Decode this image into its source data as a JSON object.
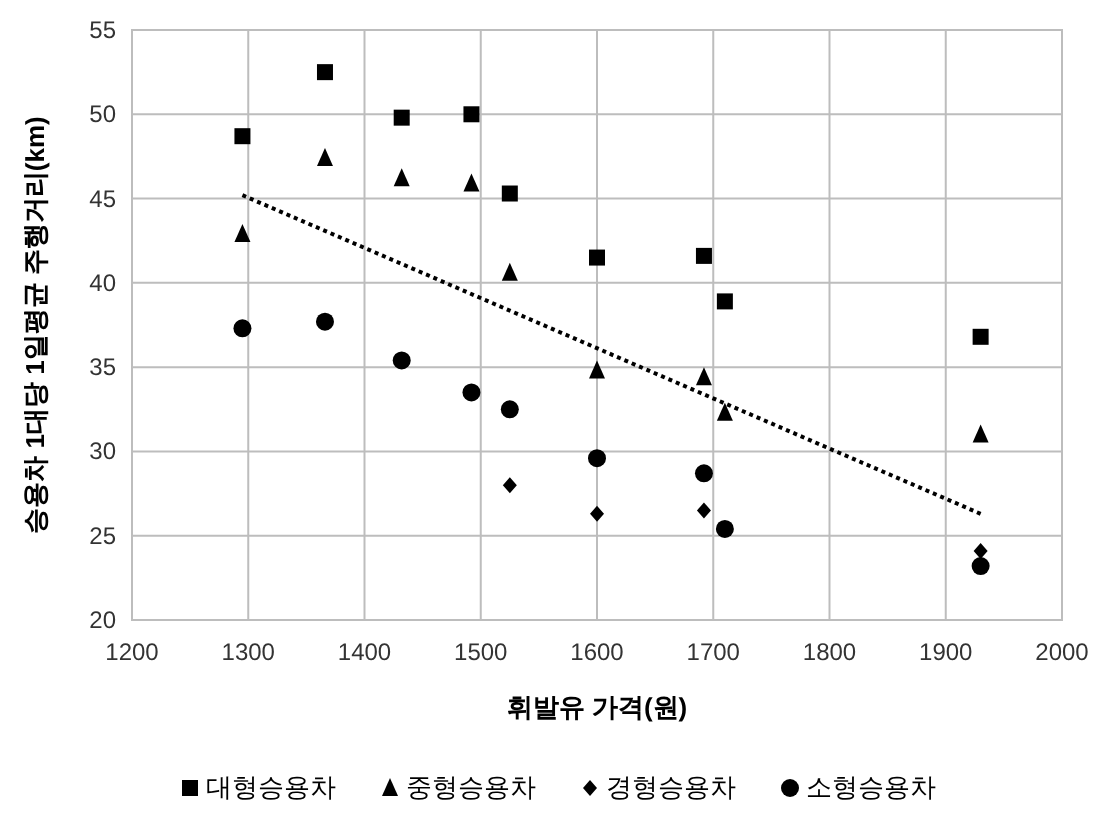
{
  "chart_data": {
    "type": "scatter",
    "xlabel": "휘발유 가격(원)",
    "ylabel": "승용차 1대당 1일평균 주행거리(km)",
    "xlim": [
      1200,
      2000
    ],
    "xticks": [
      1200,
      1300,
      1400,
      1500,
      1600,
      1700,
      1800,
      1900,
      2000
    ],
    "ylim": [
      20,
      55
    ],
    "yticks": [
      20,
      25,
      30,
      35,
      40,
      45,
      50,
      55
    ],
    "grid": true,
    "legend": "bottom",
    "series": [
      {
        "name": "대형승용차",
        "color": "#000000",
        "marker": "square",
        "x": [
          1295,
          1366,
          1432,
          1492,
          1525,
          1600,
          1692,
          1710,
          1930
        ],
        "values": [
          48.7,
          52.5,
          49.8,
          50.0,
          45.3,
          41.5,
          41.6,
          38.9,
          36.8
        ]
      },
      {
        "name": "중형승용차",
        "color": "#000000",
        "marker": "triangle",
        "x": [
          1295,
          1366,
          1432,
          1492,
          1525,
          1600,
          1692,
          1710,
          1930
        ],
        "values": [
          42.9,
          47.4,
          46.2,
          45.9,
          40.6,
          34.8,
          34.4,
          32.3,
          31.0
        ]
      },
      {
        "name": "경형승용차",
        "color": "#000000",
        "marker": "diamond",
        "x": [
          1525,
          1600,
          1692,
          1930
        ],
        "values": [
          28.0,
          26.3,
          26.5,
          24.1
        ]
      },
      {
        "name": "소형승용차",
        "color": "#000000",
        "marker": "circle",
        "x": [
          1295,
          1366,
          1432,
          1492,
          1525,
          1600,
          1692,
          1710,
          1930
        ],
        "values": [
          37.3,
          37.7,
          35.4,
          33.5,
          32.5,
          29.6,
          28.7,
          25.4,
          23.2
        ]
      },
      {
        "type": "line",
        "color": "#000000",
        "marker": "none",
        "line_style": "dotted",
        "x": [
          1295,
          1930
        ],
        "values": [
          45.2,
          26.3
        ]
      }
    ]
  }
}
